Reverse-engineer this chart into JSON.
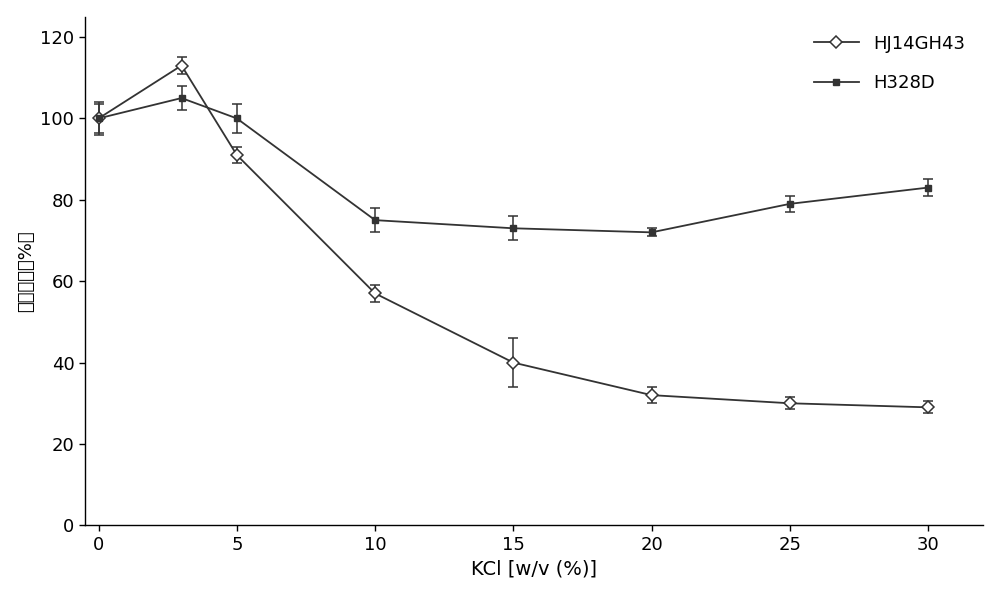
{
  "x": [
    0,
    3,
    5,
    10,
    15,
    20,
    25,
    30
  ],
  "hj14gh43_y": [
    100,
    113,
    91,
    57,
    40,
    32,
    30,
    29
  ],
  "hj14gh43_yerr": [
    4,
    2,
    2,
    2,
    6,
    2,
    1.5,
    1.5
  ],
  "h328d_y": [
    100,
    105,
    100,
    75,
    73,
    72,
    79,
    83
  ],
  "h328d_yerr": [
    3.5,
    3,
    3.5,
    3,
    3,
    1,
    2,
    2
  ],
  "xlabel": "KCl [w/v (%)]",
  "ylabel": "相对酶活（%）",
  "xlim": [
    -0.5,
    32
  ],
  "ylim": [
    0,
    125
  ],
  "yticks": [
    0,
    20,
    40,
    60,
    80,
    100,
    120
  ],
  "xticks": [
    0,
    5,
    10,
    15,
    20,
    25,
    30
  ],
  "legend_hj14gh43": "HJ14GH43",
  "legend_h328d": "H328D",
  "line_color": "#333333",
  "background_color": "#ffffff"
}
